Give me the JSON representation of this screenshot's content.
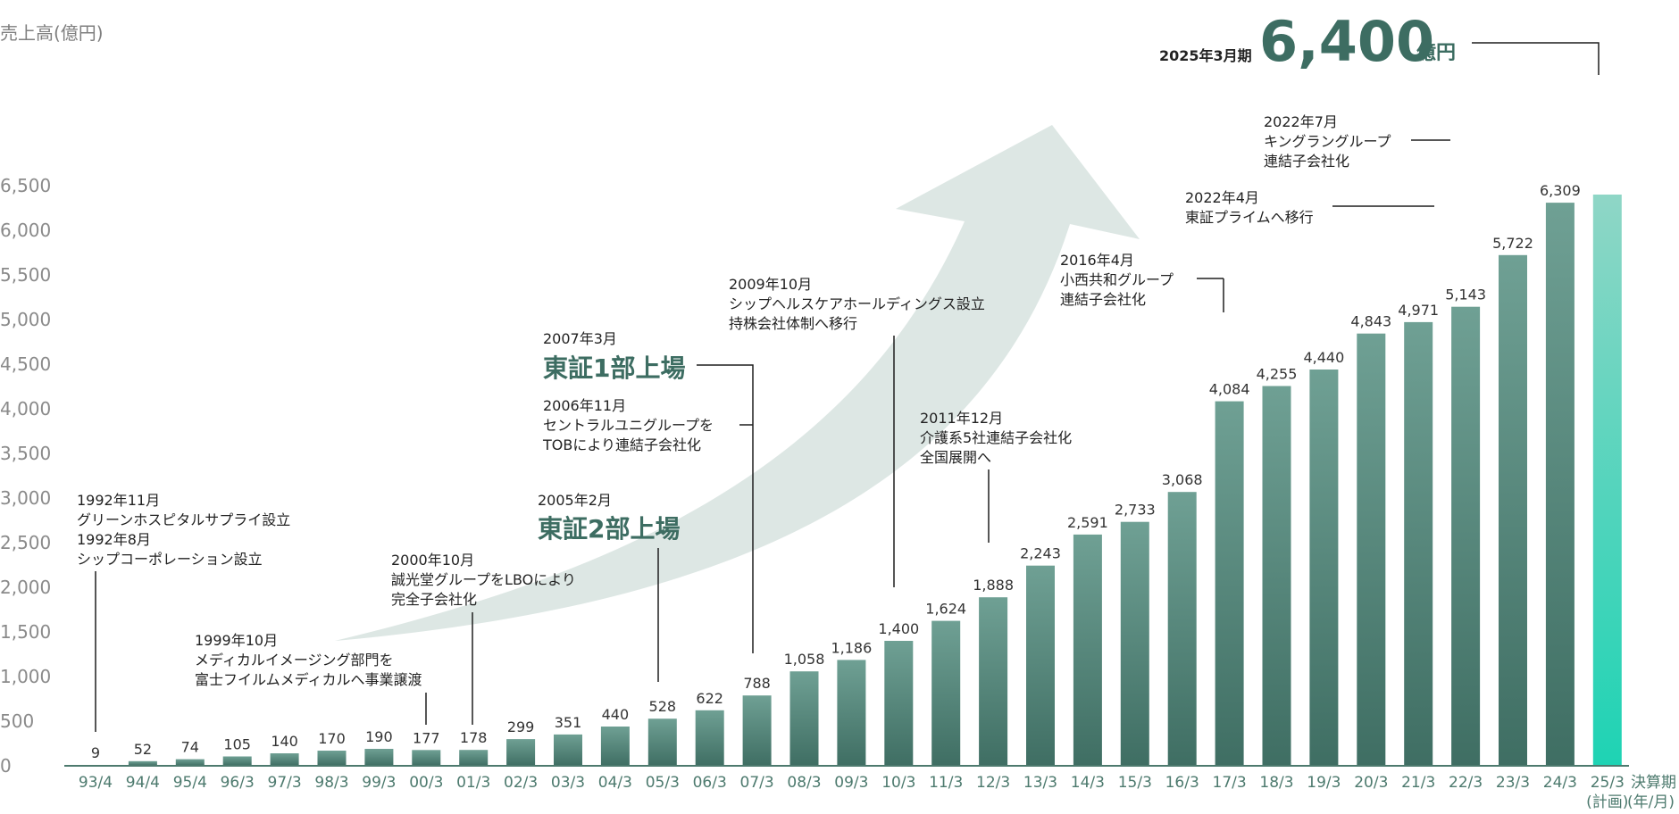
{
  "chart_data": {
    "type": "bar",
    "ylabel": "売上高(億円)",
    "xlabel_lines": [
      "決算期",
      "(年/月)"
    ],
    "ylim": [
      0,
      6500
    ],
    "yticks": [
      0,
      500,
      1000,
      1500,
      2000,
      2500,
      3000,
      3500,
      4000,
      4500,
      5000,
      5500,
      6000,
      6500
    ],
    "ytick_labels": [
      "0",
      "500",
      "1,000",
      "1,500",
      "2,000",
      "2,500",
      "3,000",
      "3,500",
      "4,000",
      "4,500",
      "5,000",
      "5,500",
      "6,000",
      "6,500"
    ],
    "categories": [
      "93/4",
      "94/4",
      "95/4",
      "96/3",
      "97/3",
      "98/3",
      "99/3",
      "00/3",
      "01/3",
      "02/3",
      "03/3",
      "04/3",
      "05/3",
      "06/3",
      "07/3",
      "08/3",
      "09/3",
      "10/3",
      "11/3",
      "12/3",
      "13/3",
      "14/3",
      "15/3",
      "16/3",
      "17/3",
      "18/3",
      "19/3",
      "20/3",
      "21/3",
      "22/3",
      "23/3",
      "24/3",
      "25/3"
    ],
    "category_sub": {
      "25/3": "(計画)"
    },
    "values": [
      9,
      52,
      74,
      105,
      140,
      170,
      190,
      177,
      178,
      299,
      351,
      440,
      528,
      622,
      788,
      1058,
      1186,
      1400,
      1624,
      1888,
      2243,
      2591,
      2733,
      3068,
      4084,
      4255,
      4440,
      4843,
      4971,
      5143,
      5722,
      6309,
      6400
    ],
    "value_labels": [
      "9",
      "52",
      "74",
      "105",
      "140",
      "170",
      "190",
      "177",
      "178",
      "299",
      "351",
      "440",
      "528",
      "622",
      "788",
      "1,058",
      "1,186",
      "1,400",
      "1,624",
      "1,888",
      "2,243",
      "2,591",
      "2,733",
      "3,068",
      "4,084",
      "4,255",
      "4,440",
      "4,843",
      "4,971",
      "5,143",
      "5,722",
      "6,309",
      ""
    ],
    "colors": {
      "bar_top": "#6fa094",
      "bar_bottom": "#3f6e63",
      "plan_top": "#8fd6c6",
      "plan_bottom": "#1ed3b4",
      "arrow": "#dde7e4",
      "axis": "#4d7a6e",
      "accent_text": "#3d6d62"
    },
    "target": {
      "period": "2025年3月期",
      "value": "6,400",
      "unit": "億円"
    },
    "annotations": [
      {
        "lines": [
          "1992年11月",
          "グリーンホスピタルサプライ設立",
          "1992年8月",
          "シップコーポレーション設立"
        ]
      },
      {
        "lines": [
          "1999年10月",
          "メディカルイメージング部門を",
          "富士フイルムメディカルへ事業譲渡"
        ]
      },
      {
        "lines": [
          "2000年10月",
          "誠光堂グループをLBOにより",
          "完全子会社化"
        ]
      },
      {
        "lines": [
          "2005年2月"
        ],
        "big": "東証2部上場"
      },
      {
        "lines": [
          "2007年3月"
        ],
        "big": "東証1部上場"
      },
      {
        "lines": [
          "2006年11月",
          "セントラルユニグループを",
          "TOBにより連結子会社化"
        ]
      },
      {
        "lines": [
          "2009年10月",
          "シップヘルスケアホールディングス設立",
          "持株会社体制へ移行"
        ]
      },
      {
        "lines": [
          "2011年12月",
          "介護系5社連結子会社化",
          "全国展開へ"
        ]
      },
      {
        "lines": [
          "2016年4月",
          "小西共和グループ",
          "連結子会社化"
        ]
      },
      {
        "lines": [
          "2022年4月",
          "東証プライムへ移行"
        ]
      },
      {
        "lines": [
          "2022年7月",
          "キングラングループ",
          "連結子会社化"
        ]
      }
    ]
  }
}
